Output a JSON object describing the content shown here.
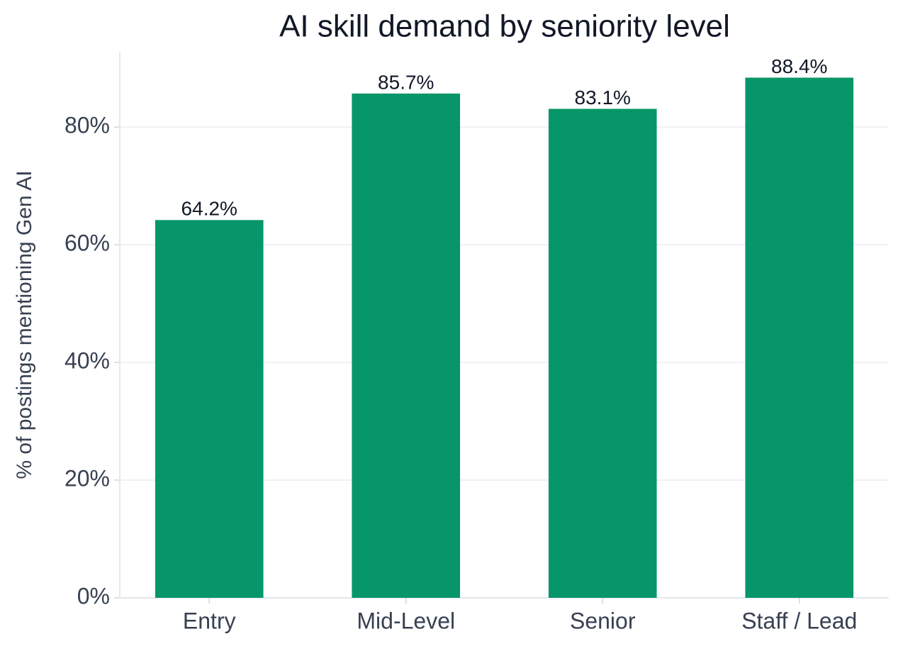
{
  "chart_data": {
    "type": "bar",
    "title": "AI skill demand by seniority level",
    "ylabel": "% of postings mentioning Gen AI",
    "categories": [
      "Entry",
      "Mid-Level",
      "Senior",
      "Staff / Lead"
    ],
    "values": [
      64.2,
      85.7,
      83.1,
      88.4
    ],
    "value_labels": [
      "64.2%",
      "85.7%",
      "83.1%",
      "88.4%"
    ],
    "color": "#079669",
    "ylim": [
      0,
      92.8
    ],
    "yticks": [
      {
        "value": 0,
        "label": "0%"
      },
      {
        "value": 20,
        "label": "20%"
      },
      {
        "value": 40,
        "label": "40%"
      },
      {
        "value": 60,
        "label": "60%"
      },
      {
        "value": 80,
        "label": "80%"
      }
    ],
    "grid": true
  }
}
